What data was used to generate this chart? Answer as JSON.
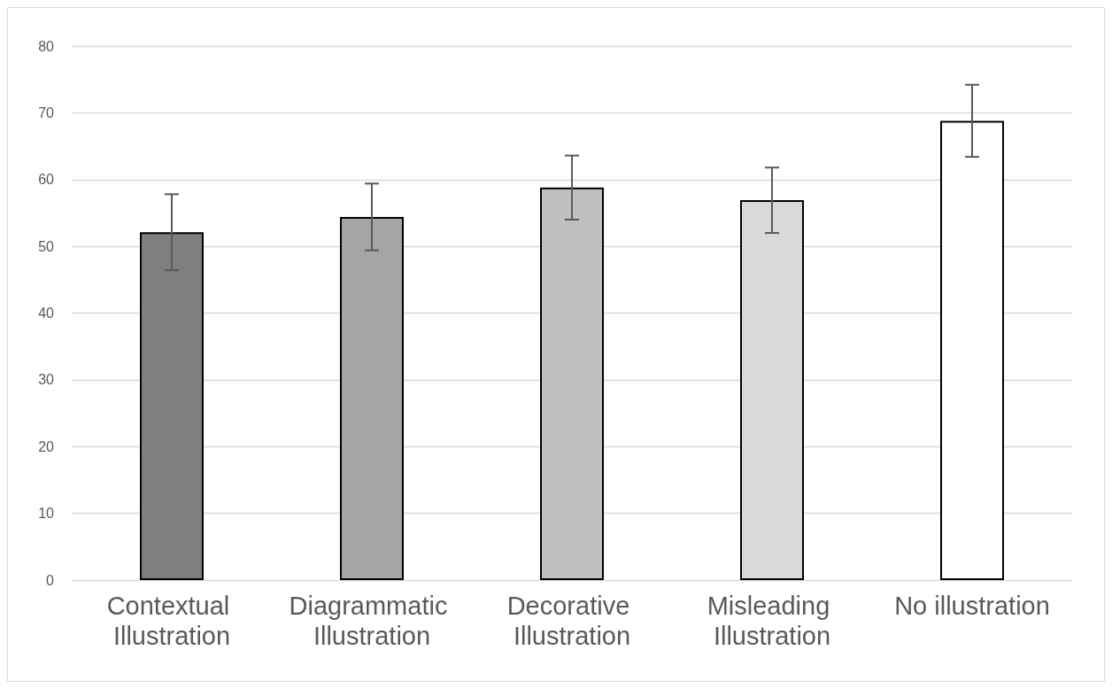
{
  "chart_data": {
    "type": "bar",
    "categories": [
      "Contextual Illustration",
      "Diagrammatic Illustration",
      "Decorative Illustration",
      "Misleading Illustration",
      "No illustration"
    ],
    "values": [
      52.1,
      54.4,
      58.8,
      56.9,
      68.8
    ],
    "errors": [
      5.7,
      5.0,
      4.8,
      4.9,
      5.4
    ],
    "colors": [
      "#7f7f7f",
      "#a5a5a5",
      "#bfbfbf",
      "#d9d9d9",
      "#ffffff"
    ],
    "ylim": [
      0,
      80
    ],
    "yticks": [
      0,
      10,
      20,
      30,
      40,
      50,
      60,
      70,
      80
    ],
    "grid": "y"
  }
}
